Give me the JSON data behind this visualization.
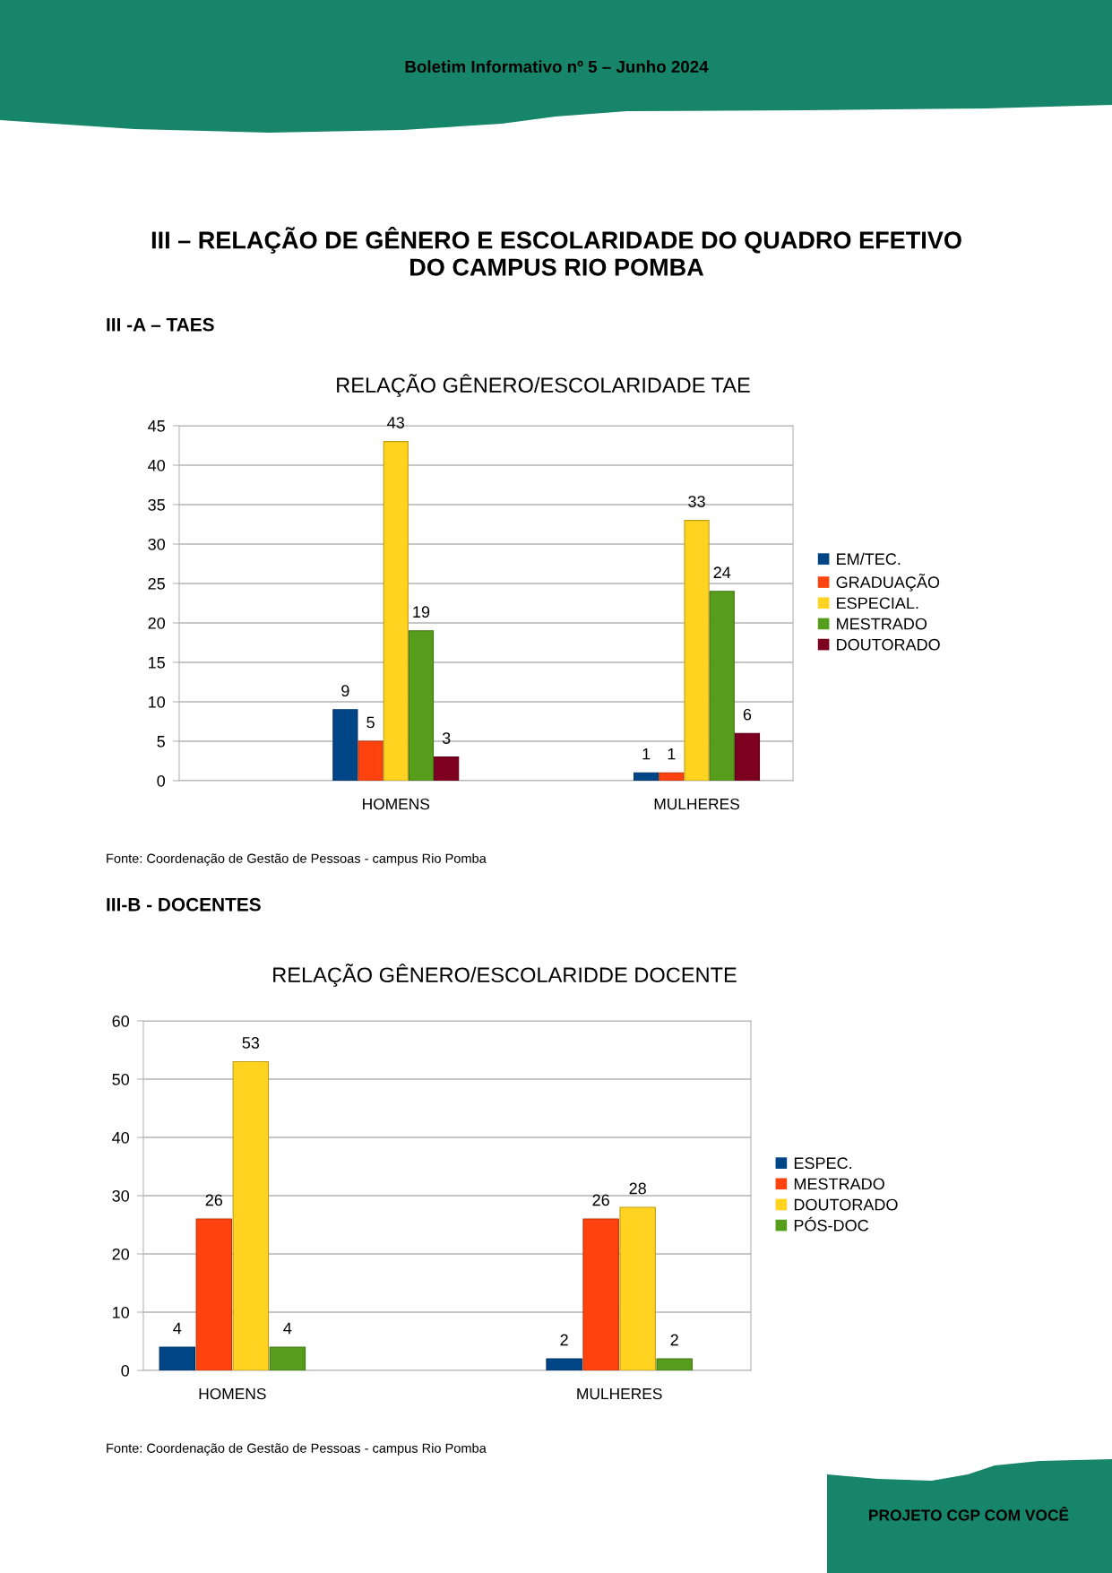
{
  "chart_data": [
    {
      "type": "bar",
      "title": "RELAÇÃO GÊNERO/ESCOLARIDADE TAE",
      "categories": [
        "HOMENS",
        "MULHERES"
      ],
      "series": [
        {
          "name": "EM/TEC.",
          "color": "#004586",
          "values": [
            9,
            1
          ]
        },
        {
          "name": "GRADUAÇÃO",
          "color": "#ff420e",
          "values": [
            5,
            1
          ]
        },
        {
          "name": "ESPECIAL.",
          "color": "#ffd320",
          "values": [
            43,
            33
          ]
        },
        {
          "name": "MESTRADO",
          "color": "#579d1c",
          "values": [
            19,
            24
          ]
        },
        {
          "name": "DOUTORADO",
          "color": "#7e0021",
          "values": [
            3,
            6
          ]
        }
      ],
      "ylim": [
        0,
        45
      ],
      "yticks": [
        0,
        5,
        10,
        15,
        20,
        25,
        30,
        35,
        40,
        45
      ],
      "grid": "y",
      "legend": "right",
      "data_labels": true,
      "annotations": [
        "Boletim Informativo nº 5 – Junho 2024",
        "III – RELAÇÃO DE GÊNERO E ESCOLARIDADE DO QUADRO EFETIVO\nDO CAMPUS RIO POMBA",
        "III -A – TAES",
        "Fonte: Coordenação de Gestão de Pessoas - campus Rio Pomba"
      ]
    },
    {
      "type": "bar",
      "title": "RELAÇÃO GÊNERO/ESCOLARIDDE DOCENTE",
      "categories": [
        "HOMENS",
        "MULHERES"
      ],
      "series": [
        {
          "name": "ESPEC.",
          "color": "#004586",
          "values": [
            4,
            2
          ]
        },
        {
          "name": "MESTRADO",
          "color": "#ff420e",
          "values": [
            26,
            26
          ]
        },
        {
          "name": "DOUTORADO",
          "color": "#ffd320",
          "values": [
            53,
            28
          ]
        },
        {
          "name": "PÓS-DOC",
          "color": "#579d1c",
          "values": [
            4,
            2
          ]
        }
      ],
      "ylim": [
        0,
        60
      ],
      "yticks": [
        0,
        10,
        20,
        30,
        40,
        50,
        60
      ],
      "grid": "y",
      "legend": "right",
      "data_labels": true,
      "annotations": [
        "III-B - DOCENTES",
        "Fonte: Coordenação de Gestão de Pessoas - campus Rio Pomba",
        "PROJETO CGP COM VOCÊ"
      ]
    }
  ]
}
